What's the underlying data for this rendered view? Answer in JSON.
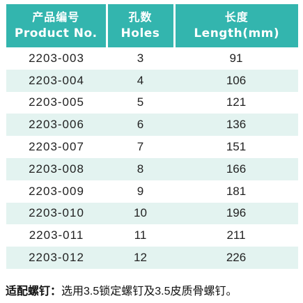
{
  "table": {
    "headers": [
      {
        "cn": "产品编号",
        "en": "Product No."
      },
      {
        "cn": "孔数",
        "en": "Holes"
      },
      {
        "cn": "长度",
        "en": "Length(mm)"
      }
    ],
    "rows": [
      {
        "product_no": "2203-003",
        "holes": "3",
        "length": "91"
      },
      {
        "product_no": "2203-004",
        "holes": "4",
        "length": "106"
      },
      {
        "product_no": "2203-005",
        "holes": "5",
        "length": "121"
      },
      {
        "product_no": "2203-006",
        "holes": "6",
        "length": "136"
      },
      {
        "product_no": "2203-007",
        "holes": "7",
        "length": "151"
      },
      {
        "product_no": "2203-008",
        "holes": "8",
        "length": "166"
      },
      {
        "product_no": "2203-009",
        "holes": "9",
        "length": "181"
      },
      {
        "product_no": "2203-010",
        "holes": "10",
        "length": "196"
      },
      {
        "product_no": "2203-011",
        "holes": "11",
        "length": "211"
      },
      {
        "product_no": "2203-012",
        "holes": "12",
        "length": "226"
      }
    ]
  },
  "footnote": {
    "label": "适配螺钉：",
    "text": "选用3.5锁定螺钉及3.5皮质骨螺钉。"
  },
  "colors": {
    "header_bg": "#33b5ae",
    "stripe_bg": "#e3f3f0"
  }
}
